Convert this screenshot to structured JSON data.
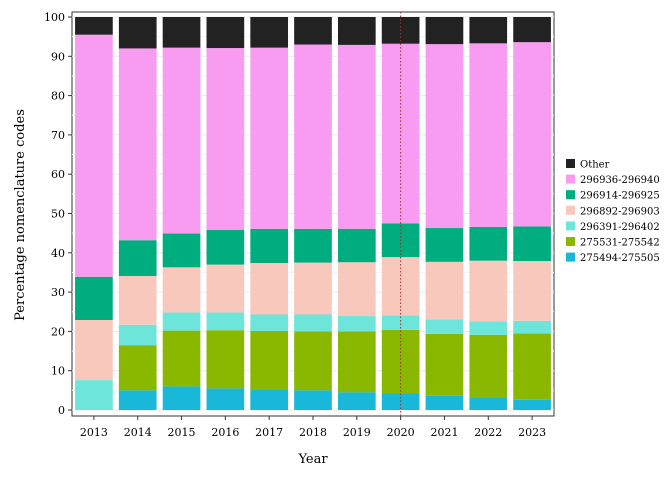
{
  "chart_data": {
    "type": "bar",
    "stacked": true,
    "xlabel": "Year",
    "ylabel": "Percentage nomenclature codes",
    "ylim": [
      0,
      100
    ],
    "yticks": [
      0,
      10,
      20,
      30,
      40,
      50,
      60,
      70,
      80,
      90,
      100
    ],
    "grid": true,
    "legend_position": "right",
    "categories": [
      "2013",
      "2014",
      "2015",
      "2016",
      "2017",
      "2018",
      "2019",
      "2020",
      "2021",
      "2022",
      "2023"
    ],
    "reference_line": {
      "x": "2020",
      "color": "#a03030",
      "style": "dotted"
    },
    "series": [
      {
        "name": "275494-275505",
        "color": "#1ab8d8",
        "values": [
          0,
          5,
          6,
          5.5,
          5.2,
          5,
          4.5,
          4.2,
          3.6,
          3.2,
          2.6
        ]
      },
      {
        "name": "275531-275542",
        "color": "#8ab800",
        "values": [
          0,
          11.5,
          14.2,
          14.8,
          14.9,
          15,
          15.5,
          16.2,
          15.8,
          15.9,
          16.9
        ]
      },
      {
        "name": "296391-296402",
        "color": "#6ee5da",
        "values": [
          7.6,
          5.2,
          4.6,
          4.5,
          4.2,
          4.3,
          3.9,
          3.7,
          3.7,
          3.5,
          3.2
        ]
      },
      {
        "name": "296892-296903",
        "color": "#f8c8bc",
        "values": [
          15.3,
          12.4,
          11.5,
          12.2,
          13.1,
          13.2,
          13.7,
          14.8,
          14.6,
          15.4,
          15.2
        ]
      },
      {
        "name": "296914-296925",
        "color": "#00ad7f",
        "values": [
          11,
          9.1,
          8.6,
          8.8,
          8.7,
          8.6,
          8.5,
          8.6,
          8.6,
          8.6,
          8.8
        ]
      },
      {
        "name": "296936-296940",
        "color": "#f79cf0",
        "values": [
          61.6,
          48.8,
          47.3,
          46.3,
          46.1,
          46.9,
          46.8,
          45.7,
          46.8,
          46.7,
          46.9
        ]
      },
      {
        "name": "Other",
        "color": "#222222",
        "values": [
          4.5,
          8,
          7.8,
          7.9,
          7.8,
          7,
          7.1,
          6.8,
          6.9,
          6.7,
          6.4
        ]
      }
    ]
  }
}
